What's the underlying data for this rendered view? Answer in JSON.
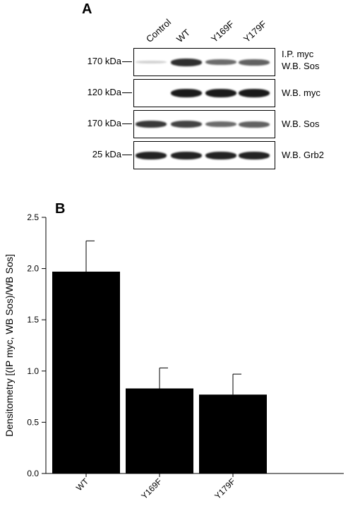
{
  "panel_a": {
    "letter": "A",
    "lanes": [
      "Control",
      "WT",
      "Y169F",
      "Y179F"
    ],
    "blots": [
      {
        "marker": "170 kDa",
        "label_lines": [
          "I.P. myc",
          "W.B. Sos"
        ],
        "intensities": [
          0.05,
          0.85,
          0.55,
          0.6
        ]
      },
      {
        "marker": "120 kDa",
        "label_lines": [
          "W.B. myc"
        ],
        "intensities": [
          0.0,
          0.95,
          0.95,
          0.95
        ]
      },
      {
        "marker": "170 kDa",
        "label_lines": [
          "W.B. Sos"
        ],
        "intensities": [
          0.8,
          0.75,
          0.55,
          0.6
        ]
      },
      {
        "marker": "25 kDa",
        "label_lines": [
          "W.B. Grb2"
        ],
        "intensities": [
          0.9,
          0.9,
          0.9,
          0.9
        ]
      }
    ]
  },
  "panel_b": {
    "letter": "B"
  },
  "chart_data": {
    "type": "bar",
    "categories": [
      "WT",
      "Y169F",
      "Y179F"
    ],
    "values": [
      1.97,
      0.83,
      0.77
    ],
    "errors": [
      0.3,
      0.2,
      0.2
    ],
    "xlabel": "",
    "ylabel": "Densitometry [(IP myc, WB Sos)/WB Sos]",
    "ylim": [
      0,
      2.5
    ],
    "yticks": [
      "0.0",
      "0.5",
      "1.0",
      "1.5",
      "2.0",
      "2.5"
    ],
    "grid": false,
    "bar_color": "#000000"
  }
}
